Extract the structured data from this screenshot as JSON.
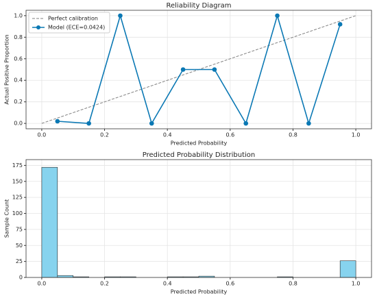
{
  "chart_data": [
    {
      "type": "line",
      "title": "Reliability Diagram",
      "xlabel": "Predicted Probability",
      "ylabel": "Actual Positive Proportion",
      "series": [
        {
          "name": "Perfect calibration",
          "color": "#808080",
          "dashed": true,
          "markers": false,
          "x": [
            0,
            1
          ],
          "values": [
            0,
            1
          ]
        },
        {
          "name": "Model (ECE=0.0424)",
          "color": "#0a78b4",
          "dashed": false,
          "markers": true,
          "x": [
            0.05,
            0.15,
            0.25,
            0.35,
            0.45,
            0.55,
            0.65,
            0.75,
            0.85,
            0.95
          ],
          "values": [
            0.02,
            0,
            1,
            0,
            0.5,
            0.5,
            0,
            1,
            0,
            0.92
          ]
        }
      ],
      "xlim": [
        -0.05,
        1.05
      ],
      "ylim": [
        -0.05,
        1.05
      ],
      "xticks": [
        {
          "value": 0,
          "label": "0.0"
        },
        {
          "value": 0.2,
          "label": "0.2"
        },
        {
          "value": 0.4,
          "label": "0.4"
        },
        {
          "value": 0.6,
          "label": "0.6"
        },
        {
          "value": 0.8,
          "label": "0.8"
        },
        {
          "value": 1,
          "label": "1.0"
        }
      ],
      "yticks": [
        {
          "value": 0,
          "label": "0.0"
        },
        {
          "value": 0.2,
          "label": "0.2"
        },
        {
          "value": 0.4,
          "label": "0.4"
        },
        {
          "value": 0.6,
          "label": "0.6"
        },
        {
          "value": 0.8,
          "label": "0.8"
        },
        {
          "value": 1,
          "label": "1.0"
        }
      ],
      "grid": true,
      "legend": "upper left"
    },
    {
      "type": "histogram",
      "title": "Predicted Probability Distribution",
      "xlabel": "Predicted Probability",
      "ylabel": "Sample Count",
      "bins": [
        0,
        0.05,
        0.1,
        0.15,
        0.2,
        0.25,
        0.3,
        0.35,
        0.4,
        0.45,
        0.5,
        0.55,
        0.6,
        0.65,
        0.7,
        0.75,
        0.8,
        0.85,
        0.9,
        0.95,
        1
      ],
      "values": [
        172,
        3,
        1,
        0,
        1,
        1,
        0,
        0,
        1,
        1,
        2,
        0,
        0,
        0,
        0,
        1,
        0,
        0,
        0,
        26
      ],
      "color": "#87d3ee",
      "xlim": [
        -0.05,
        1.05
      ],
      "ylim": [
        0,
        184
      ],
      "xticks": [
        {
          "value": 0,
          "label": "0.0"
        },
        {
          "value": 0.2,
          "label": "0.2"
        },
        {
          "value": 0.4,
          "label": "0.4"
        },
        {
          "value": 0.6,
          "label": "0.6"
        },
        {
          "value": 0.8,
          "label": "0.8"
        },
        {
          "value": 1,
          "label": "1.0"
        }
      ],
      "yticks": [
        0,
        25,
        50,
        75,
        100,
        125,
        150,
        175
      ],
      "grid": true
    }
  ]
}
